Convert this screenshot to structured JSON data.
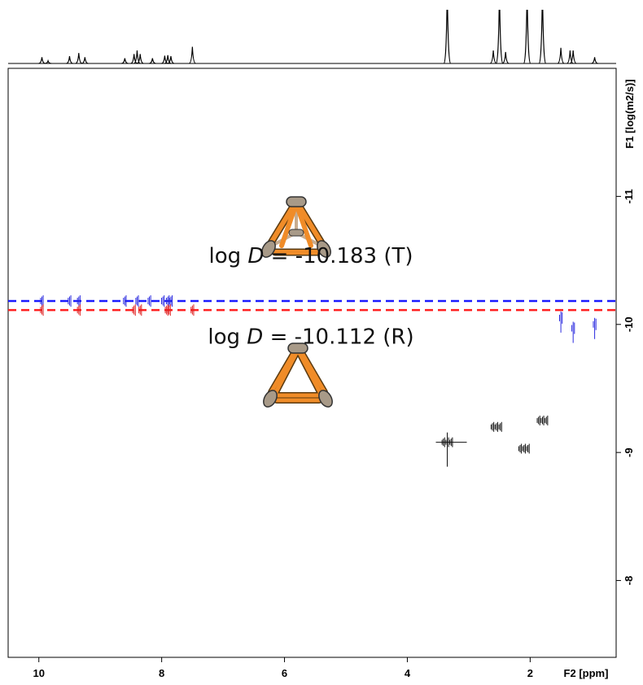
{
  "chart_data": {
    "type": "dosy",
    "xlabel": "F2 [ppm]",
    "ylabel": "F1 [log(m2/s)]",
    "xlim": [
      10.5,
      0.6
    ],
    "ylim": [
      -12,
      -7.4
    ],
    "xticks": [
      10,
      8,
      6,
      4,
      2
    ],
    "yticks": [
      -11,
      -10,
      -9,
      -8
    ],
    "reference_lines": [
      {
        "value": -10.183,
        "color": "#1a1aff",
        "annotation": [
          "log ",
          "D",
          " = -10.183 (T)"
        ]
      },
      {
        "value": -10.112,
        "color": "#ff2020",
        "annotation": [
          "log ",
          "D",
          " = -10.112 (R)"
        ]
      }
    ],
    "peak_groups": [
      {
        "color": "#2a2ae0",
        "x": [
          9.95,
          9.5,
          9.35,
          8.6,
          8.4,
          8.2,
          7.98,
          7.9,
          7.85,
          1.5,
          1.3,
          0.95
        ],
        "y": [
          -10.183,
          -10.183,
          -10.183,
          -10.183,
          -10.183,
          -10.183,
          -10.183,
          -10.183,
          -10.183,
          -10.05,
          -9.97,
          -10.0
        ]
      },
      {
        "color": "#e02020",
        "x": [
          9.95,
          9.35,
          8.45,
          8.35,
          7.92,
          7.88,
          7.5
        ],
        "y": [
          -10.112,
          -10.112,
          -10.112,
          -10.112,
          -10.112,
          -10.112,
          -10.112
        ]
      },
      {
        "color": "#111111",
        "x": [
          3.35,
          2.55,
          2.1,
          1.8
        ],
        "y": [
          -9.08,
          -9.2,
          -9.03,
          -9.25
        ]
      }
    ],
    "projection": {
      "ylim": [
        0,
        100
      ],
      "x": [
        9.95,
        9.85,
        9.5,
        9.35,
        9.25,
        8.6,
        8.45,
        8.4,
        8.35,
        8.15,
        7.95,
        7.9,
        7.85,
        7.5,
        3.35,
        2.6,
        2.5,
        2.4,
        2.05,
        1.8,
        1.5,
        1.35,
        1.3,
        0.95
      ],
      "heights": [
        12,
        5,
        14,
        20,
        12,
        10,
        18,
        25,
        18,
        10,
        15,
        16,
        14,
        32,
        150,
        25,
        150,
        22,
        150,
        150,
        30,
        25,
        25,
        12
      ]
    }
  }
}
